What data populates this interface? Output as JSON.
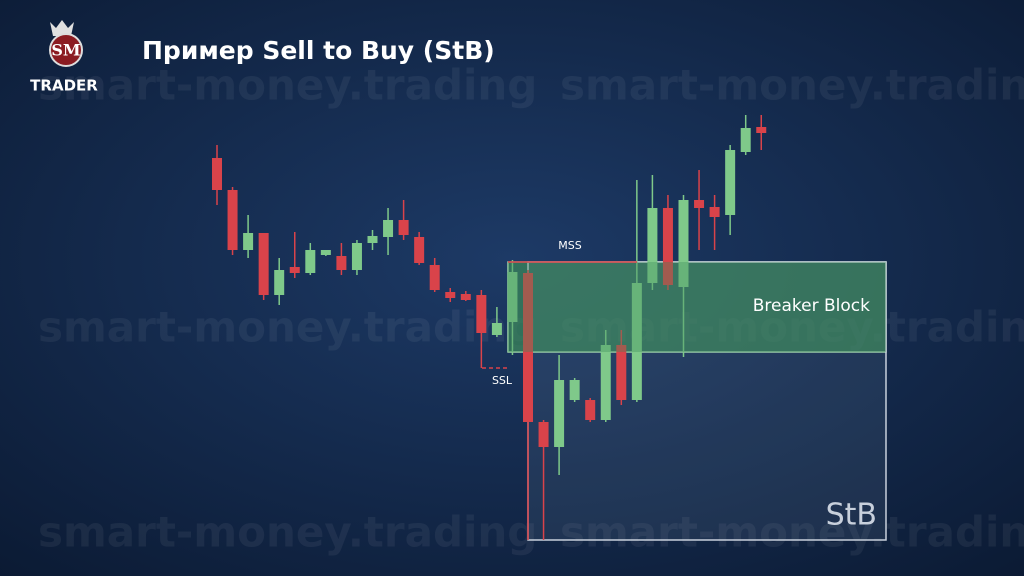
{
  "header": {
    "logo_mark": "SM",
    "logo_text": "TRADER",
    "title": "Пример Sell to Buy (StB)"
  },
  "watermarks": [
    "smart-money.trading",
    "smart-money.trading",
    "smart-money.trading",
    "smart-money.trading",
    "smart-money.trading",
    "smart-money.trading"
  ],
  "chart_data": {
    "type": "candlestick",
    "ylim": [
      0,
      576
    ],
    "up_color": "#7fc98a",
    "down_color": "#d9434a",
    "open": [
      418,
      386,
      326,
      343,
      281,
      309,
      303,
      321,
      320,
      306,
      333,
      339,
      356,
      339,
      311,
      284,
      282,
      281,
      241,
      254,
      303,
      154,
      129,
      176,
      176,
      156,
      231,
      176,
      293,
      368,
      289,
      376,
      369,
      361,
      424,
      449
    ],
    "high": [
      431,
      389,
      361,
      343,
      318,
      344,
      333,
      326,
      333,
      336,
      346,
      368,
      376,
      344,
      318,
      288,
      285,
      286,
      269,
      316,
      306,
      156,
      221,
      198,
      178,
      246,
      246,
      396,
      401,
      381,
      381,
      406,
      381,
      431,
      461,
      461
    ],
    "low": [
      371,
      321,
      318,
      276,
      271,
      298,
      301,
      320,
      301,
      301,
      326,
      321,
      336,
      311,
      284,
      274,
      275,
      208,
      239,
      221,
      36,
      36,
      101,
      174,
      154,
      154,
      171,
      174,
      286,
      286,
      219,
      326,
      326,
      341,
      421,
      426
    ],
    "close": [
      386,
      326,
      343,
      281,
      306,
      303,
      326,
      326,
      306,
      333,
      340,
      356,
      341,
      313,
      286,
      278,
      276,
      243,
      253,
      304,
      154,
      129,
      196,
      196,
      156,
      231,
      176,
      293,
      368,
      291,
      376,
      368,
      359,
      426,
      448,
      443
    ],
    "zones": [
      {
        "label": "Breaker Block",
        "top": 314,
        "bottom": 224
      },
      {
        "label": "StB",
        "top": 314,
        "bottom": 36
      }
    ],
    "levels": [
      {
        "label": "MSS",
        "value": 314
      },
      {
        "label": "SSL",
        "value": 208
      }
    ]
  }
}
